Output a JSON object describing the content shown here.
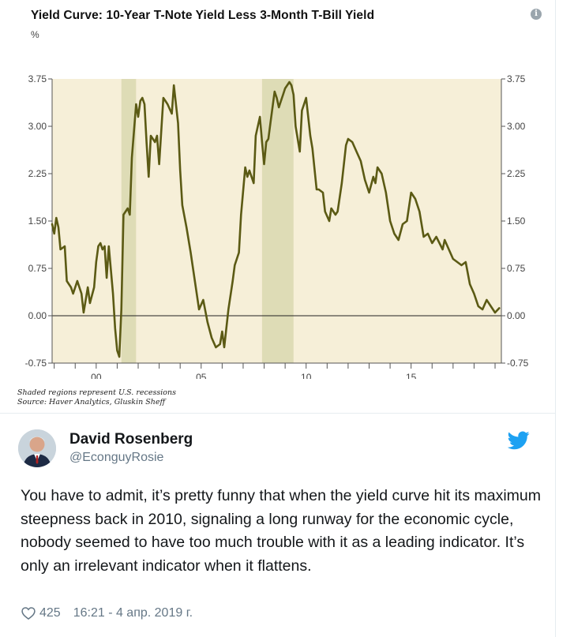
{
  "chart": {
    "title": "Yield Curve: 10-Year T-Note Yield Less 3-Month T-Bill Yield",
    "unit": "%",
    "info_icon": "info-icon",
    "notes": [
      "Shaded regions represent U.S. recessions",
      "Source: Haver Analytics, Gluskin Sheff"
    ]
  },
  "chart_data": {
    "type": "line",
    "title": "Yield Curve: 10-Year T-Note Yield Less 3-Month T-Bill Yield",
    "ylabel": "%",
    "xlabel": "",
    "ylim": [
      -0.75,
      3.75
    ],
    "xlim": [
      1997.9,
      2019.3
    ],
    "y_ticks": [
      "3.75",
      "3.00",
      "2.25",
      "1.50",
      "0.75",
      "0.00",
      "-0.75"
    ],
    "y_tick_values": [
      3.75,
      3.0,
      2.25,
      1.5,
      0.75,
      0.0,
      -0.75
    ],
    "x_tick_labels": [
      "00",
      "05",
      "10",
      "15"
    ],
    "x_tick_values": [
      2000,
      2005,
      2010,
      2015
    ],
    "recessions": [
      [
        2001.2,
        2001.9
      ],
      [
        2007.9,
        2009.4
      ]
    ],
    "recession_color": "#dedcb6",
    "background_color": "#f6efd8",
    "line_color": "#5b5a14",
    "grid": false,
    "series": [
      {
        "x": [
          1997.9,
          1998.0,
          1998.1,
          1998.2,
          1998.3,
          1998.5,
          1998.6,
          1998.8,
          1998.9,
          1999.1,
          1999.3,
          1999.4,
          1999.6,
          1999.7,
          1999.9,
          2000.0,
          2000.1,
          2000.2,
          2000.3,
          2000.4,
          2000.5,
          2000.6,
          2000.8,
          2000.9,
          2001.0,
          2001.1,
          2001.2,
          2001.3,
          2001.5,
          2001.6,
          2001.7,
          2001.9,
          2002.0,
          2002.1,
          2002.2,
          2002.3,
          2002.4,
          2002.5,
          2002.6,
          2002.8,
          2002.9,
          2003.0,
          2003.2,
          2003.3,
          2003.4,
          2003.6,
          2003.7,
          2003.9,
          2004.0,
          2004.1,
          2004.3,
          2004.5,
          2004.7,
          2004.9,
          2005.1,
          2005.3,
          2005.5,
          2005.7,
          2005.9,
          2006.0,
          2006.1,
          2006.3,
          2006.5,
          2006.6,
          2006.8,
          2006.9,
          2007.1,
          2007.2,
          2007.3,
          2007.5,
          2007.6,
          2007.8,
          2007.9,
          2008.0,
          2008.1,
          2008.2,
          2008.3,
          2008.5,
          2008.6,
          2008.7,
          2008.8,
          2008.9,
          2009.0,
          2009.2,
          2009.3,
          2009.4,
          2009.5,
          2009.7,
          2009.8,
          2009.9,
          2010.0,
          2010.2,
          2010.3,
          2010.5,
          2010.6,
          2010.8,
          2010.9,
          2011.1,
          2011.2,
          2011.4,
          2011.5,
          2011.7,
          2011.9,
          2012.0,
          2012.2,
          2012.4,
          2012.6,
          2012.8,
          2013.0,
          2013.2,
          2013.3,
          2013.4,
          2013.6,
          2013.8,
          2014.0,
          2014.2,
          2014.4,
          2014.6,
          2014.8,
          2015.0,
          2015.2,
          2015.4,
          2015.6,
          2015.8,
          2016.0,
          2016.2,
          2016.5,
          2016.6,
          2016.8,
          2017.0,
          2017.2,
          2017.4,
          2017.6,
          2017.8,
          2018.0,
          2018.2,
          2018.4,
          2018.6,
          2018.8,
          2019.0,
          2019.2
        ],
        "y": [
          1.45,
          1.3,
          1.55,
          1.4,
          1.05,
          1.1,
          0.55,
          0.45,
          0.35,
          0.55,
          0.35,
          0.05,
          0.45,
          0.2,
          0.45,
          0.85,
          1.1,
          1.15,
          1.05,
          1.1,
          0.6,
          1.1,
          0.35,
          -0.2,
          -0.55,
          -0.65,
          0.1,
          1.6,
          1.7,
          1.6,
          2.5,
          3.35,
          3.15,
          3.4,
          3.45,
          3.35,
          2.75,
          2.2,
          2.85,
          2.75,
          2.85,
          2.4,
          3.45,
          3.4,
          3.35,
          3.2,
          3.65,
          3.05,
          2.3,
          1.75,
          1.4,
          1.0,
          0.55,
          0.1,
          0.25,
          -0.1,
          -0.35,
          -0.5,
          -0.45,
          -0.25,
          -0.5,
          0.1,
          0.55,
          0.8,
          1.0,
          1.6,
          2.35,
          2.2,
          2.3,
          2.1,
          2.85,
          3.15,
          2.75,
          2.4,
          2.75,
          2.8,
          3.05,
          3.55,
          3.45,
          3.3,
          3.4,
          3.5,
          3.6,
          3.7,
          3.65,
          3.5,
          3.0,
          2.6,
          3.25,
          3.35,
          3.45,
          2.85,
          2.65,
          2.0,
          2.0,
          1.95,
          1.65,
          1.5,
          1.7,
          1.6,
          1.65,
          2.1,
          2.7,
          2.8,
          2.75,
          2.6,
          2.45,
          2.15,
          1.95,
          2.2,
          2.1,
          2.35,
          2.25,
          1.95,
          1.5,
          1.3,
          1.2,
          1.45,
          1.5,
          1.95,
          1.85,
          1.65,
          1.25,
          1.3,
          1.15,
          1.25,
          1.05,
          1.2,
          1.05,
          0.9,
          0.85,
          0.8,
          0.85,
          0.5,
          0.35,
          0.15,
          0.1,
          0.25,
          0.15,
          0.05,
          0.12
        ]
      }
    ]
  },
  "tweet": {
    "author_name": "David Rosenberg",
    "handle": "@EconguyRosie",
    "text": "You have to admit, it’s pretty funny that when the yield curve hit its maximum steepness back in 2010, signaling a long runway for the economic cycle, nobody seemed to have too much trouble with it as a leading indicator. It’s only an irrelevant indicator when it flattens.",
    "likes": "425",
    "timestamp": "16:21 - 4 апр. 2019 г.",
    "icons": {
      "avatar": "avatar",
      "brand": "twitter-bird-icon",
      "like": "heart-icon"
    },
    "colors": {
      "brand": "#1da1f2",
      "muted": "#657786",
      "text": "#14171a"
    }
  }
}
